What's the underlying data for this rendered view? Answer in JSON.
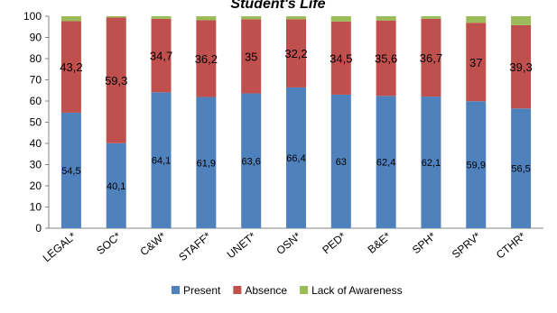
{
  "chart_data": {
    "type": "bar",
    "stacked": true,
    "title": "Student's Life",
    "xlabel": "",
    "ylabel": "",
    "ylim": [
      0,
      100
    ],
    "yticks": [
      0,
      10,
      20,
      30,
      40,
      50,
      60,
      70,
      80,
      90,
      100
    ],
    "grid": false,
    "legend_position": "bottom",
    "categories": [
      "LEGAL*",
      "SOC*",
      "C&W*",
      "STAFF*",
      "UNET*",
      "OSN*",
      "PED*",
      "B&E*",
      "SPH*",
      "SPRV*",
      "CTHR*"
    ],
    "series": [
      {
        "name": "Present",
        "color": "#4f81bd",
        "values": [
          54.5,
          40.1,
          64.1,
          61.9,
          63.6,
          66.4,
          63,
          62.4,
          62.1,
          59.9,
          56.5
        ],
        "labels": [
          "54,5",
          "40,1",
          "64,1",
          "61,9",
          "63,6",
          "66,4",
          "63",
          "62,4",
          "62,1",
          "59,9",
          "56,5"
        ]
      },
      {
        "name": "Absence",
        "color": "#c0504d",
        "values": [
          43.2,
          59.3,
          34.7,
          36.2,
          35,
          32.2,
          34.5,
          35.6,
          36.7,
          37,
          39.3
        ],
        "labels": [
          "43,2",
          "59,3",
          "34,7",
          "36,2",
          "35",
          "32,2",
          "34,5",
          "35,6",
          "36,7",
          "37",
          "39,3"
        ]
      },
      {
        "name": "Lack of Awareness",
        "color": "#9bbb59",
        "values": [
          2.3,
          0.6,
          1.2,
          1.9,
          1.4,
          1.4,
          2.5,
          2,
          1.2,
          3.1,
          4.2
        ]
      }
    ]
  }
}
